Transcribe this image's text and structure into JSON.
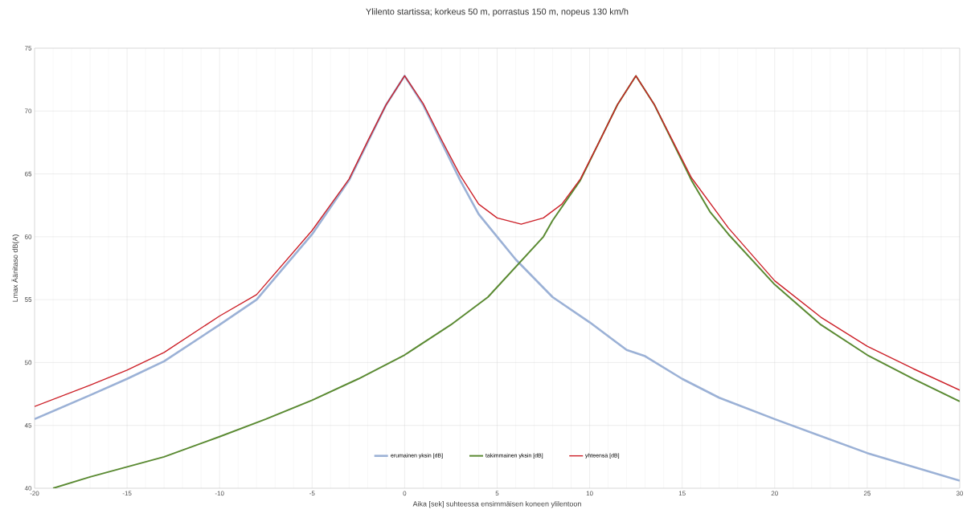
{
  "chart_data": {
    "type": "line",
    "title": "Ylilento startissa; korkeus 50 m, porrastus 150 m, nopeus 130 km/h",
    "xlabel": "Aika  [sek] suhteessa ensimmäisen koneen ylilentoon",
    "ylabel": "Lmax Äänitaso dB(A)",
    "xlim": [
      -20,
      30
    ],
    "ylim": [
      40,
      75
    ],
    "xticks": [
      -20,
      -15,
      -10,
      -5,
      0,
      5,
      10,
      15,
      20,
      25,
      30
    ],
    "yticks": [
      40,
      45,
      50,
      55,
      60,
      65,
      70,
      75
    ],
    "grid": true,
    "legend": "bottom",
    "marker": "none",
    "line_style": "solid",
    "series": [
      {
        "name": "erumainen yksin [dB]",
        "color": "#9bb1d6",
        "x": [
          -20,
          -17,
          -15,
          -13,
          -10,
          -8,
          -5,
          -3,
          -2,
          -1,
          0,
          1,
          2,
          3,
          4,
          5,
          6,
          7,
          8,
          10,
          12,
          13,
          15,
          17,
          20,
          25,
          30
        ],
        "values": [
          45.5,
          47.4,
          48.7,
          50.1,
          53,
          55,
          60.2,
          64.5,
          67.5,
          70.5,
          72.8,
          70.5,
          67.5,
          64.5,
          61.8,
          60,
          58.2,
          56.7,
          55.2,
          53.2,
          51,
          50.5,
          48.7,
          47.2,
          45.5,
          42.8,
          40.6
        ]
      },
      {
        "name": "takimmainen yksin [dB]",
        "color": "#5a8a32",
        "x": [
          -19,
          -17,
          -15,
          -13,
          -10,
          -7.5,
          -5,
          -2.5,
          0,
          2.5,
          4.5,
          5,
          7.5,
          8,
          9.5,
          10.5,
          11.5,
          12.5,
          13.5,
          14.5,
          15.5,
          16.5,
          17.5,
          20,
          22.5,
          25,
          27.5,
          30
        ],
        "values": [
          40,
          40.9,
          41.7,
          42.5,
          44.1,
          45.5,
          47,
          48.7,
          50.6,
          53,
          55.2,
          56,
          60,
          61.3,
          64.5,
          67.5,
          70.5,
          72.8,
          70.5,
          67.5,
          64.5,
          62,
          60.2,
          56.2,
          53,
          50.6,
          48.7,
          46.9
        ]
      },
      {
        "name": "yhteensä [dB]",
        "color": "#cc1f27",
        "x": [
          -20,
          -17,
          -15,
          -13,
          -10,
          -8,
          -5,
          -3,
          -2,
          -1,
          0,
          1,
          2,
          3,
          4,
          5,
          6.3,
          7.5,
          8.5,
          9.5,
          10.5,
          11.5,
          12.5,
          13.5,
          14.5,
          15.5,
          17.5,
          20,
          22.5,
          25,
          27.5,
          30
        ],
        "values": [
          46.5,
          48.2,
          49.4,
          50.8,
          53.7,
          55.4,
          60.5,
          64.6,
          67.6,
          70.5,
          72.8,
          70.6,
          67.7,
          64.9,
          62.6,
          61.5,
          61,
          61.5,
          62.6,
          64.6,
          67.5,
          70.5,
          72.8,
          70.5,
          67.6,
          64.7,
          60.7,
          56.5,
          53.6,
          51.3,
          49.5,
          47.8
        ]
      }
    ]
  }
}
